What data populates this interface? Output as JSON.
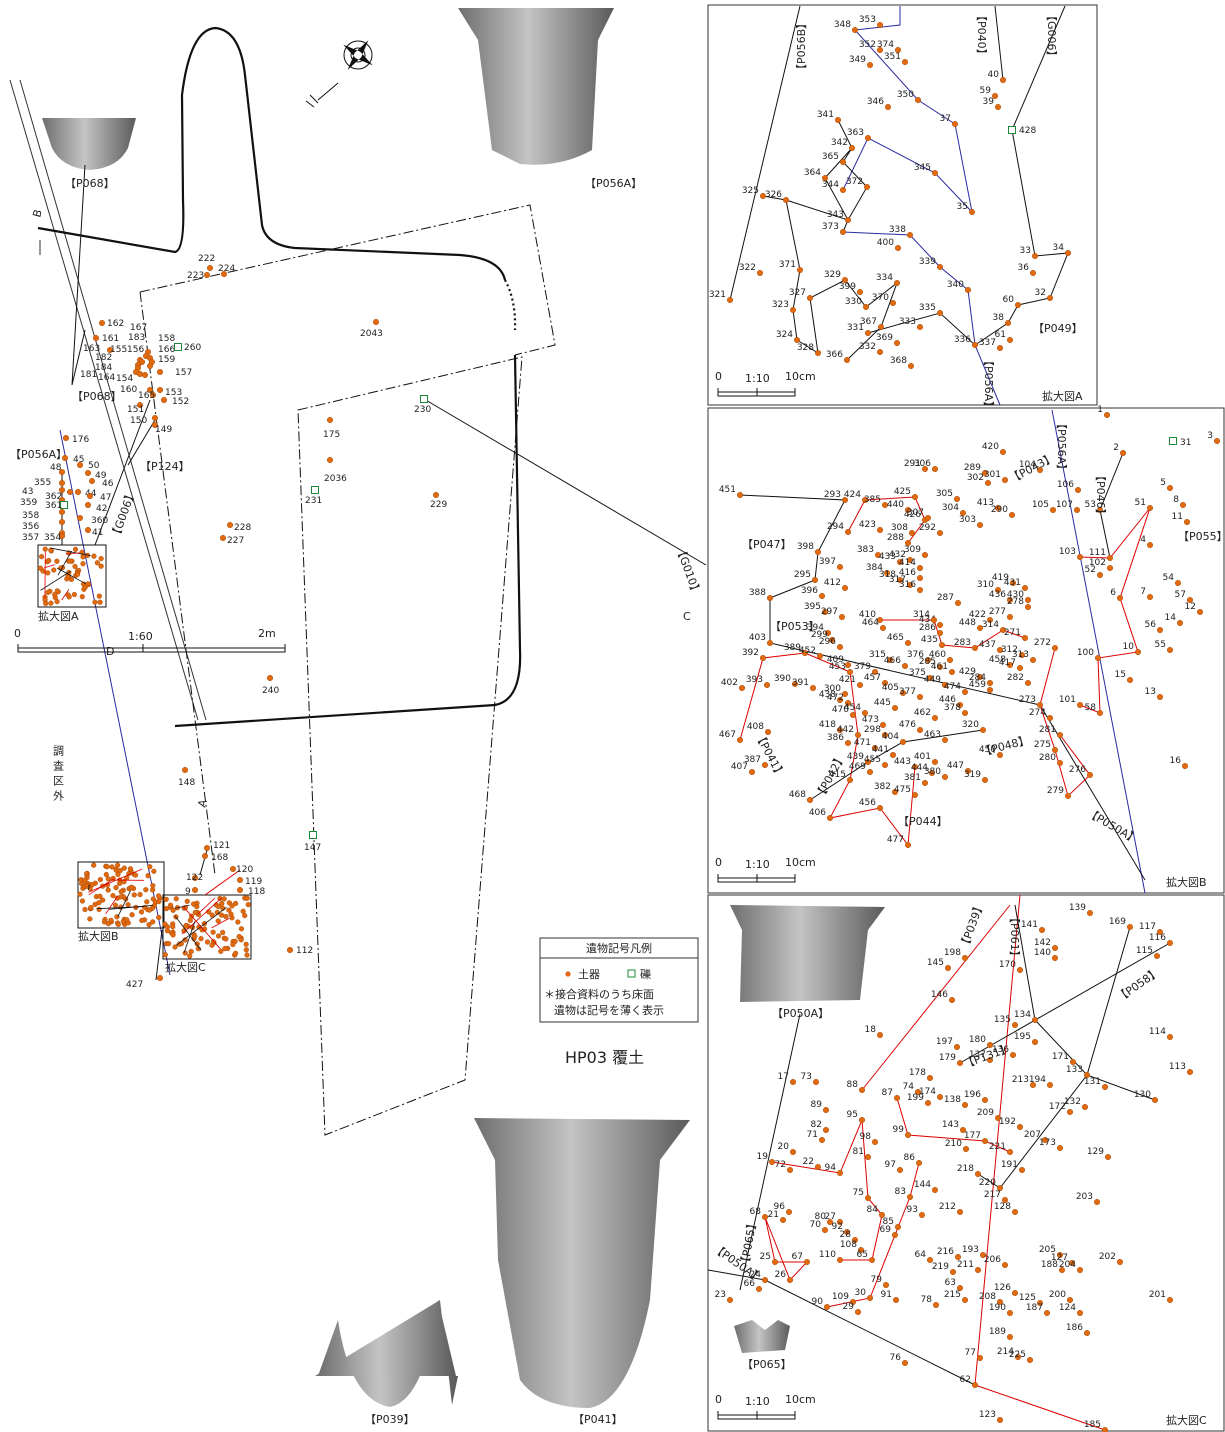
{
  "plan": {
    "title": "HP03 覆土",
    "outside_label": "調査区外",
    "section_marks": [
      "B",
      "C",
      "D",
      "A"
    ],
    "groups": [
      "【P068】",
      "【P056A】",
      "【P068】",
      "【P124】",
      "【G006】",
      "【P056A】",
      "【G010】",
      "【P039】",
      "【P041】"
    ],
    "inset_captions": [
      "拡大図A",
      "拡大図B",
      "拡大図C"
    ],
    "points": [
      "222",
      "224",
      "223",
      "2043",
      "162",
      "161",
      "163",
      "167",
      "183",
      "158",
      "155",
      "156",
      "166",
      "260",
      "182",
      "159",
      "184",
      "157",
      "181",
      "164",
      "154",
      "153",
      "160",
      "165",
      "152",
      "151",
      "150",
      "149",
      "176",
      "45",
      "50",
      "49",
      "48",
      "46",
      "355",
      "43",
      "362",
      "44",
      "47",
      "359",
      "361",
      "42",
      "358",
      "360",
      "356",
      "41",
      "357",
      "354",
      "175",
      "2036",
      "231",
      "230",
      "229",
      "228",
      "227",
      "240",
      "148",
      "147",
      "121",
      "168",
      "122",
      "9",
      "120",
      "119",
      "118",
      "112",
      "427"
    ],
    "scale": {
      "start": "0",
      "ratio": "1:60",
      "end": "2m"
    }
  },
  "legend": {
    "title": "遺物記号凡例",
    "pottery": "土器",
    "stone": "礫",
    "note": [
      "＊接合資料のうち床面",
      "遺物は記号を薄く表示"
    ]
  },
  "panels": [
    {
      "caption": "拡大図A",
      "scale": {
        "start": "0",
        "ratio": "1:10",
        "end": "10cm"
      },
      "groups": [
        "【P056B】",
        "【P040】",
        "【G006】",
        "【P049】",
        "【P056A】"
      ],
      "points": [
        "348",
        "353",
        "352",
        "374",
        "349",
        "351",
        "346",
        "350",
        "341",
        "37",
        "363",
        "342",
        "365",
        "345",
        "364",
        "372",
        "344",
        "326",
        "35",
        "343",
        "325",
        "373",
        "338",
        "400",
        "371",
        "339",
        "322",
        "329",
        "334",
        "399",
        "327",
        "370",
        "330",
        "340",
        "321",
        "323",
        "335",
        "331",
        "367",
        "333",
        "324",
        "369",
        "328",
        "366",
        "332",
        "336",
        "368",
        "38",
        "60",
        "61",
        "337",
        "32",
        "33",
        "34",
        "36",
        "40",
        "59",
        "39",
        "428"
      ]
    },
    {
      "caption": "拡大図B",
      "scale": {
        "start": "0",
        "ratio": "1:10",
        "end": "10cm"
      },
      "groups": [
        "【P043】",
        "【P046】",
        "【P055】",
        "【P047】",
        "【P053】",
        "【P041】",
        "【P042】",
        "【P048】",
        "【P044】",
        "【P050A】",
        "【P056A】"
      ],
      "points": [
        "1",
        "2",
        "3",
        "31",
        "420",
        "291",
        "306",
        "289",
        "302",
        "301",
        "104",
        "106",
        "5",
        "8",
        "11",
        "107",
        "105",
        "53",
        "51",
        "451",
        "293",
        "424",
        "385",
        "425",
        "305",
        "440",
        "304",
        "413",
        "290",
        "426",
        "307",
        "303",
        "308",
        "292",
        "294",
        "423",
        "288",
        "309",
        "4",
        "398",
        "383",
        "433",
        "432",
        "414",
        "397",
        "384",
        "416",
        "318",
        "317",
        "316",
        "111",
        "102",
        "52",
        "103",
        "419",
        "431",
        "310",
        "436",
        "430",
        "278",
        "295",
        "287",
        "412",
        "54",
        "7",
        "57",
        "12",
        "396",
        "388",
        "6",
        "277",
        "434",
        "422",
        "286",
        "410",
        "395",
        "297",
        "314",
        "448",
        "314",
        "464",
        "465",
        "394",
        "56",
        "14",
        "299",
        "271",
        "272",
        "435",
        "283",
        "437",
        "312",
        "313",
        "100",
        "10",
        "55",
        "403",
        "389",
        "452",
        "296",
        "409",
        "315",
        "376",
        "460",
        "458",
        "392",
        "453",
        "285",
        "461",
        "417",
        "393",
        "390",
        "421",
        "379",
        "466",
        "375",
        "429",
        "284",
        "282",
        "391",
        "457",
        "300",
        "449",
        "474",
        "459",
        "402",
        "438",
        "472",
        "405",
        "377",
        "15",
        "13",
        "446",
        "273",
        "101",
        "58",
        "274",
        "408",
        "418",
        "470",
        "454",
        "445",
        "378",
        "462",
        "473",
        "442",
        "298",
        "476",
        "320",
        "386",
        "463",
        "467",
        "404",
        "471",
        "281",
        "275",
        "441",
        "450",
        "16",
        "387",
        "439",
        "455",
        "443",
        "401",
        "407",
        "469",
        "444",
        "447",
        "380",
        "319",
        "415",
        "381",
        "280",
        "276",
        "382",
        "475",
        "279",
        "468",
        "406",
        "456",
        "477"
      ]
    },
    {
      "caption": "拡大図C",
      "scale": {
        "start": "0",
        "ratio": "1:10",
        "end": "10cm"
      },
      "groups": [
        "【P039】",
        "【P061】",
        "【P058】",
        "【P131】",
        "【P065】",
        "【P050A】",
        "【P050A】",
        "【P065】"
      ],
      "points": [
        "139",
        "169",
        "141",
        "142",
        "140",
        "145",
        "198",
        "170",
        "117",
        "116",
        "115",
        "146",
        "135",
        "134",
        "114",
        "18",
        "197",
        "180",
        "195",
        "179",
        "137",
        "136",
        "171",
        "133",
        "113",
        "178",
        "131",
        "17",
        "73",
        "74",
        "199",
        "174",
        "88",
        "87",
        "138",
        "213",
        "194",
        "196",
        "209",
        "132",
        "172",
        "130",
        "89",
        "95",
        "192",
        "143",
        "99",
        "82",
        "71",
        "98",
        "207",
        "173",
        "177",
        "210",
        "221",
        "129",
        "81",
        "19",
        "20",
        "72",
        "22",
        "94",
        "191",
        "86",
        "97",
        "218",
        "220",
        "144",
        "203",
        "217",
        "83",
        "96",
        "21",
        "27",
        "80",
        "75",
        "128",
        "70",
        "92",
        "84",
        "93",
        "212",
        "28",
        "85",
        "69",
        "68",
        "205",
        "127",
        "188",
        "204",
        "108",
        "216",
        "193",
        "206",
        "65",
        "110",
        "64",
        "211",
        "219",
        "202",
        "25",
        "67",
        "79",
        "30",
        "26",
        "24",
        "91",
        "63",
        "215",
        "126",
        "125",
        "208",
        "190",
        "187",
        "90",
        "109",
        "29",
        "66",
        "23",
        "200",
        "201",
        "78",
        "124",
        "189",
        "186",
        "214",
        "77",
        "225",
        "76",
        "62",
        "123",
        "185"
      ]
    }
  ]
}
